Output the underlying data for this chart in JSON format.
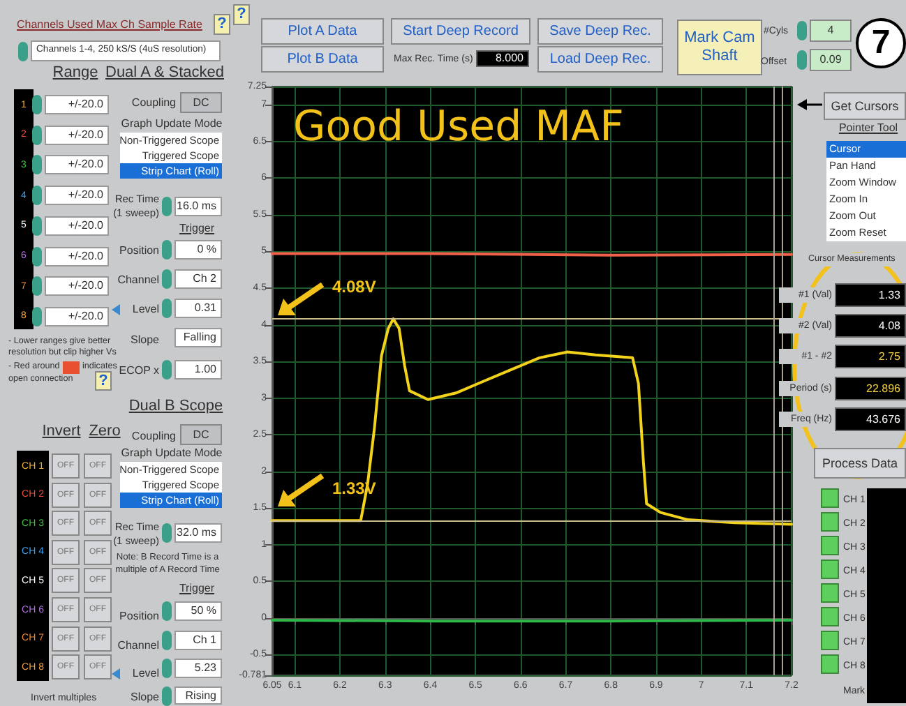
{
  "chart_data": {
    "type": "line",
    "title": "Good Used MAF",
    "series": [
      {
        "color": "#f2d21a",
        "x": [
          6.05,
          6.246,
          6.261,
          6.276,
          6.292,
          6.307,
          6.318,
          6.331,
          6.343,
          6.354,
          6.395,
          6.457,
          6.518,
          6.58,
          6.642,
          6.704,
          6.766,
          6.827,
          6.848,
          6.861,
          6.872,
          6.879,
          6.91,
          6.971,
          7.074,
          7.2
        ],
        "values": [
          1.33,
          1.33,
          1.82,
          2.57,
          3.58,
          3.95,
          4.08,
          3.95,
          3.45,
          3.1,
          2.98,
          3.07,
          3.23,
          3.39,
          3.55,
          3.63,
          3.59,
          3.56,
          3.55,
          3.2,
          2.13,
          1.56,
          1.44,
          1.34,
          1.3,
          1.28
        ]
      },
      {
        "color": "#f0604a",
        "x": [
          6.05,
          6.4,
          6.8,
          7.2
        ],
        "values": [
          4.97,
          4.97,
          4.95,
          4.96
        ]
      },
      {
        "color": "#2eb84a",
        "x": [
          6.05,
          6.4,
          6.8,
          7.2
        ],
        "values": [
          -0.03,
          -0.04,
          -0.04,
          -0.03
        ]
      }
    ],
    "xlim": [
      6.05,
      7.2
    ],
    "xticks": [
      6.05,
      6.1,
      6.2,
      6.3,
      6.4,
      6.5,
      6.6,
      6.7,
      6.8,
      6.9,
      7,
      7.1,
      7.2
    ],
    "ylim": [
      -0.781,
      7.25
    ],
    "yticks": [
      7.25,
      7,
      6.5,
      6,
      5.5,
      5,
      4.5,
      4,
      3.5,
      3,
      2.5,
      2,
      1.5,
      1,
      0.5,
      0,
      -0.5,
      -0.781
    ],
    "grid": true,
    "marker": "none",
    "line_style": "solid",
    "ref_lines": [
      {
        "axis": "y",
        "value": 4.08,
        "label": "4.08V",
        "color": "#c8bc8c"
      },
      {
        "axis": "y",
        "value": 1.33,
        "label": "1.33V",
        "color": "#c8bc8c"
      },
      {
        "axis": "x",
        "value": 7.16,
        "color": "#a8a090"
      },
      {
        "axis": "x",
        "value": 7.18,
        "color": "#a8a090"
      }
    ],
    "annotations": [
      "Channels Used Max Ch Sample Rate",
      "?",
      "Channels 1-4, 250 kS/S (4uS resolution)",
      "Range",
      "Dual A & Stacked",
      "+/-20.0",
      "+/-20.0",
      "+/-20.0",
      "+/-20.0",
      "+/-20.0",
      "+/-20.0",
      "+/-20.0",
      "+/-20.0",
      "1",
      "2",
      "3",
      "4",
      "5",
      "6",
      "7",
      "8",
      "Coupling",
      "DC",
      "Graph Update Mode",
      "Non-Triggered Scope",
      "Triggered Scope",
      "Strip Chart (Roll)",
      "Rec Time (1 sweep)",
      "16.0 ms",
      "Trigger",
      "Position",
      "0 %",
      "Channel",
      "Ch 2",
      "Level",
      "0.31",
      "Slope",
      "Falling",
      "ECOP x",
      "1.00",
      "- Lower ranges give better resolution but clip higher Vs",
      "- Red around",
      "indicates",
      "open connection",
      "?",
      "Dual B Scope",
      "Coupling",
      "DC",
      "Graph Update Mode",
      "Non-Triggered Scope",
      "Triggered Scope",
      "Strip Chart (Roll)",
      "Rec Time (1 sweep)",
      "32.0 ms",
      "Note: B Record Time is a multiple of A Record Time",
      "Trigger",
      "Position",
      "50 %",
      "Channel",
      "Ch 1",
      "Level",
      "5.23",
      "Slope",
      "Rising",
      "Invert",
      "Zero",
      "CH 1",
      "CH 2",
      "CH 3",
      "CH 4",
      "CH 5",
      "CH 6",
      "CH 7",
      "CH 8",
      "OFF",
      "OFF",
      "OFF",
      "OFF",
      "OFF",
      "OFF",
      "OFF",
      "OFF",
      "OFF",
      "OFF",
      "OFF",
      "OFF",
      "OFF",
      "OFF",
      "OFF",
      "OFF",
      "Invert multiples",
      "?",
      "Plot A Data",
      "Plot B Data",
      "Start Deep Record",
      "Max Rec. Time (s)",
      "8.000",
      "Save Deep Rec.",
      "Load Deep Rec.",
      "Mark Cam Shaft",
      "#Cyls",
      "4",
      "Offset",
      "0.09",
      "7",
      "Get Cursors",
      "Pointer Tool",
      "Cursor",
      "Pan Hand",
      "Zoom Window",
      "Zoom In",
      "Zoom Out",
      "Zoom Reset",
      "Cursor Measurements",
      "#1 (Val)",
      "1.33",
      "#2 (Val)",
      "4.08",
      "#1 - #2",
      "2.75",
      "Period (s)",
      "22.896",
      "Freq (Hz)",
      "43.676",
      "Process Data",
      "CH 1",
      "CH 2",
      "CH 3",
      "CH 4",
      "CH 5",
      "CH 6",
      "CH 7",
      "CH 8",
      "Mark"
    ]
  }
}
